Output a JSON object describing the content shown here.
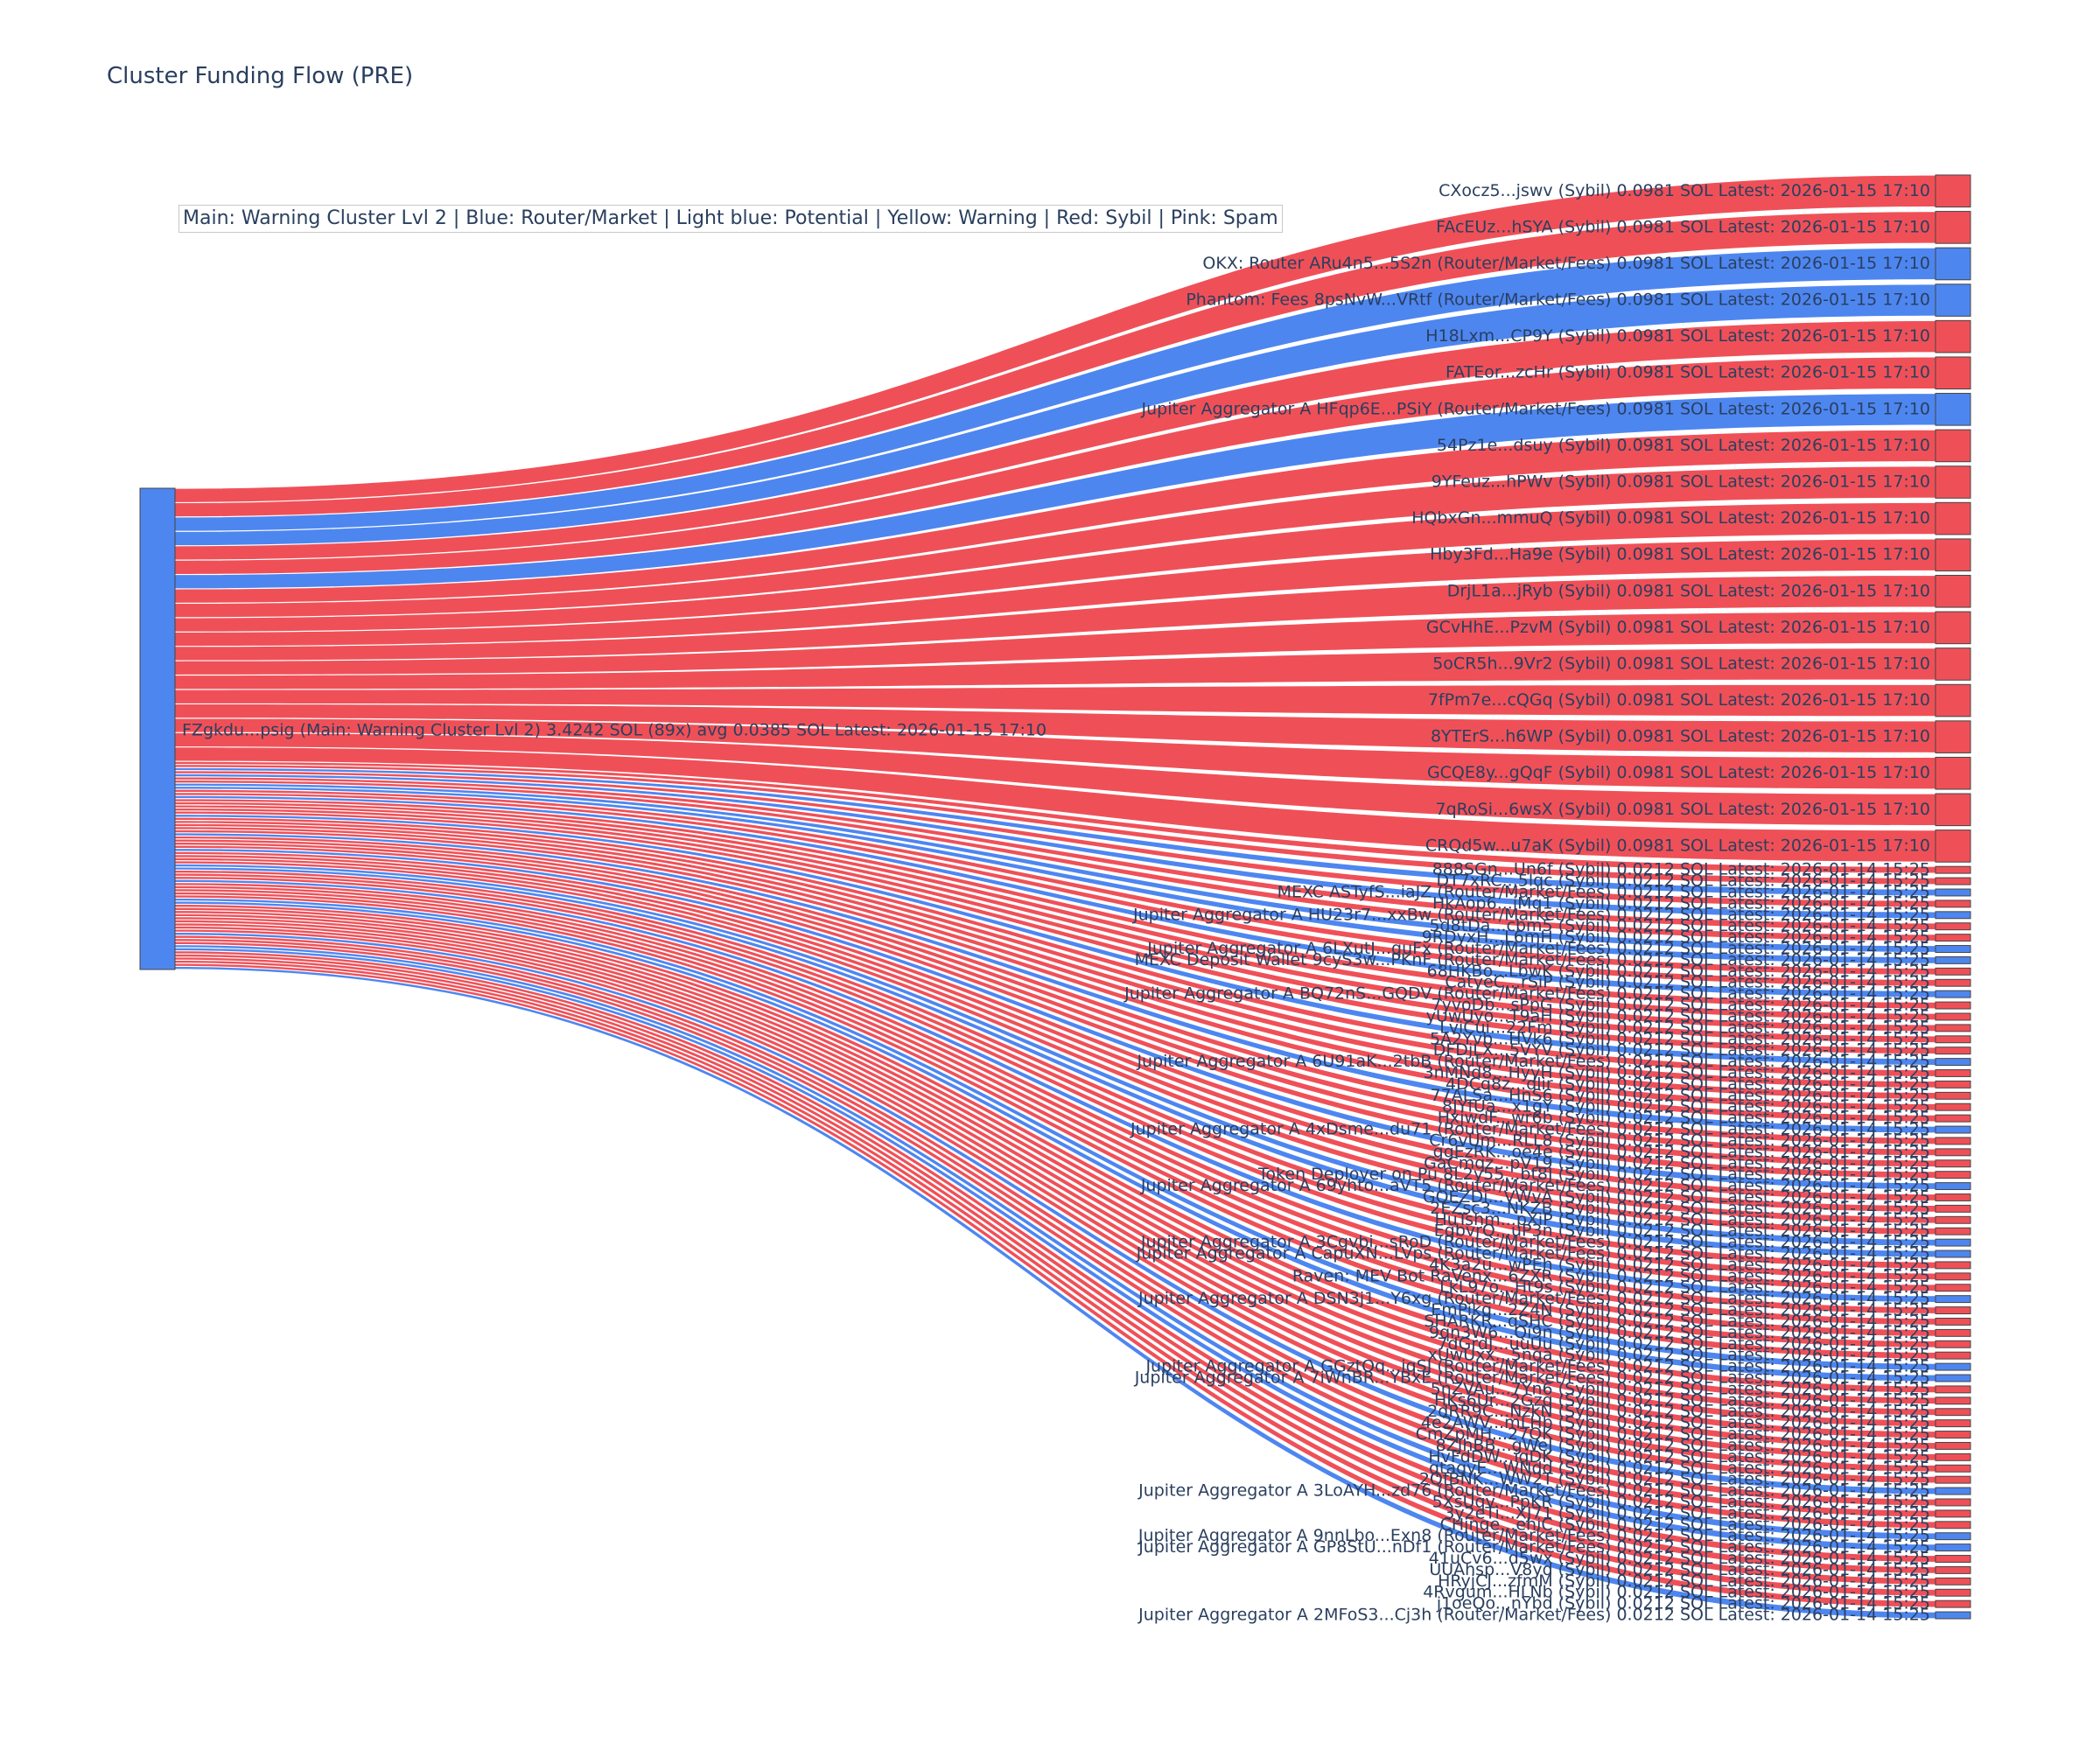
{
  "title": "Cluster Funding Flow (PRE)",
  "legend": "Main: Warning Cluster Lvl 2  |  Blue: Router/Market | Light blue: Potential | Yellow: Warning | Red: Sybil | Pink: Spam",
  "colors": {
    "sybil": "#EF5058",
    "router": "#4E86F0",
    "main": "#4E86F0",
    "label": "#2a3f5f"
  },
  "chart_data": {
    "type": "sankey",
    "source": {
      "label": "FZgkdu...psig (Main: Warning Cluster Lvl 2) 3.4242 SOL (89x) avg 0.0385 SOL Latest: 2026-01-15 17:10",
      "category": "main"
    },
    "targets": [
      {
        "label": "CXocz5...jswv (Sybil) 0.0981 SOL Latest: 2026-01-15 17:10",
        "value": 0.0981,
        "category": "sybil"
      },
      {
        "label": "FAcEUz...hSYA (Sybil) 0.0981 SOL Latest: 2026-01-15 17:10",
        "value": 0.0981,
        "category": "sybil"
      },
      {
        "label": "OKX: Router ARu4n5...5S2n (Router/Market/Fees) 0.0981 SOL Latest: 2026-01-15 17:10",
        "value": 0.0981,
        "category": "router"
      },
      {
        "label": "Phantom: Fees 8psNvW...VRtf (Router/Market/Fees) 0.0981 SOL Latest: 2026-01-15 17:10",
        "value": 0.0981,
        "category": "router"
      },
      {
        "label": "H18Lxm...CP9Y (Sybil) 0.0981 SOL Latest: 2026-01-15 17:10",
        "value": 0.0981,
        "category": "sybil"
      },
      {
        "label": "FATEor...zcHr (Sybil) 0.0981 SOL Latest: 2026-01-15 17:10",
        "value": 0.0981,
        "category": "sybil"
      },
      {
        "label": "Jupiter Aggregator A HFqp6E...PSiY (Router/Market/Fees) 0.0981 SOL Latest: 2026-01-15 17:10",
        "value": 0.0981,
        "category": "router"
      },
      {
        "label": "54Pz1e...dsuy (Sybil) 0.0981 SOL Latest: 2026-01-15 17:10",
        "value": 0.0981,
        "category": "sybil"
      },
      {
        "label": "9YFeuz...hPWv (Sybil) 0.0981 SOL Latest: 2026-01-15 17:10",
        "value": 0.0981,
        "category": "sybil"
      },
      {
        "label": "HQbxGn...mmuQ (Sybil) 0.0981 SOL Latest: 2026-01-15 17:10",
        "value": 0.0981,
        "category": "sybil"
      },
      {
        "label": "Hby3Fd...Ha9e (Sybil) 0.0981 SOL Latest: 2026-01-15 17:10",
        "value": 0.0981,
        "category": "sybil"
      },
      {
        "label": "DrjL1a...jRyb (Sybil) 0.0981 SOL Latest: 2026-01-15 17:10",
        "value": 0.0981,
        "category": "sybil"
      },
      {
        "label": "GCvHhE...PzvM (Sybil) 0.0981 SOL Latest: 2026-01-15 17:10",
        "value": 0.0981,
        "category": "sybil"
      },
      {
        "label": "5oCR5h...9Vr2 (Sybil) 0.0981 SOL Latest: 2026-01-15 17:10",
        "value": 0.0981,
        "category": "sybil"
      },
      {
        "label": "7fPm7e...cQGq (Sybil) 0.0981 SOL Latest: 2026-01-15 17:10",
        "value": 0.0981,
        "category": "sybil"
      },
      {
        "label": "8YTErS...h6WP (Sybil) 0.0981 SOL Latest: 2026-01-15 17:10",
        "value": 0.0981,
        "category": "sybil"
      },
      {
        "label": "GCQE8y...gQqF (Sybil) 0.0981 SOL Latest: 2026-01-15 17:10",
        "value": 0.0981,
        "category": "sybil"
      },
      {
        "label": "7qRoSi...6wsX (Sybil) 0.0981 SOL Latest: 2026-01-15 17:10",
        "value": 0.0981,
        "category": "sybil"
      },
      {
        "label": "CRQd5w...u7aK (Sybil) 0.0981 SOL Latest: 2026-01-15 17:10",
        "value": 0.0981,
        "category": "sybil"
      },
      {
        "label": "888SGn...Un6f (Sybil) 0.0212 SOL Latest: 2026-01-14 15:25",
        "value": 0.0212,
        "category": "sybil"
      },
      {
        "label": "DT7xRC...5lqc (Sybil) 0.0212 SOL Latest: 2026-01-14 15:25",
        "value": 0.0212,
        "category": "sybil"
      },
      {
        "label": "MEXC ASTyfS...iaJZ (Router/Market/Fees) 0.0212 SOL Latest: 2026-01-14 15:25",
        "value": 0.0212,
        "category": "router"
      },
      {
        "label": "HkAop6...iMq1 (Sybil) 0.0212 SOL Latest: 2026-01-14 15:25",
        "value": 0.0212,
        "category": "sybil"
      },
      {
        "label": "Jupiter Aggregator A HU23r7...xxBw (Router/Market/Fees) 0.0212 SOL Latest: 2026-01-14 15:25",
        "value": 0.0212,
        "category": "router"
      },
      {
        "label": "5d8tDa...cbm5 (Sybil) 0.0212 SOL Latest: 2026-01-14 15:25",
        "value": 0.0212,
        "category": "sybil"
      },
      {
        "label": "9RDyxH...L6mH (Sybil) 0.0212 SOL Latest: 2026-01-14 15:25",
        "value": 0.0212,
        "category": "sybil"
      },
      {
        "label": "Jupiter Aggregator A 6LXutJ...quFx (Router/Market/Fees) 0.0212 SOL Latest: 2026-01-14 15:25",
        "value": 0.0212,
        "category": "router"
      },
      {
        "label": "MEXC Deposit Wallet 9cyS3w...PKnF (Router/Market/Fees) 0.0212 SOL Latest: 2026-01-14 15:25",
        "value": 0.0212,
        "category": "router"
      },
      {
        "label": "68HKBo...LbwK (Sybil) 0.0212 SOL Latest: 2026-01-14 15:25",
        "value": 0.0212,
        "category": "sybil"
      },
      {
        "label": "CatyeC...rSiP (Sybil) 0.0212 SOL Latest: 2026-01-14 15:25",
        "value": 0.0212,
        "category": "sybil"
      },
      {
        "label": "Jupiter Aggregator A BQ72nS...GQDV (Router/Market/Fees) 0.0212 SOL Latest: 2026-01-14 15:25",
        "value": 0.0212,
        "category": "router"
      },
      {
        "label": "7yvoDb...sPpG (Sybil) 0.0212 SOL Latest: 2026-01-14 15:25",
        "value": 0.0212,
        "category": "sybil"
      },
      {
        "label": "yUwUyo...T9aH (Sybil) 0.0212 SOL Latest: 2026-01-14 15:25",
        "value": 0.0212,
        "category": "sybil"
      },
      {
        "label": "LviCui...22Fm (Sybil) 0.0212 SOL Latest: 2026-01-14 15:25",
        "value": 0.0212,
        "category": "sybil"
      },
      {
        "label": "5A2Yvb...HVk6 (Sybil) 0.0212 SOL Latest: 2026-01-14 15:25",
        "value": 0.0212,
        "category": "sybil"
      },
      {
        "label": "DFDjLX...5VYV (Sybil) 0.0212 SOL Latest: 2026-01-14 15:25",
        "value": 0.0212,
        "category": "sybil"
      },
      {
        "label": "Jupiter Aggregator A 6U91aK...2tbB (Router/Market/Fees) 0.0212 SOL Latest: 2026-01-14 15:25",
        "value": 0.0212,
        "category": "router"
      },
      {
        "label": "3nMNd8...HyyH (Sybil) 0.0212 SOL Latest: 2026-01-14 15:25",
        "value": 0.0212,
        "category": "sybil"
      },
      {
        "label": "4DCq8z...dlir (Sybil) 0.0212 SOL Latest: 2026-01-14 15:25",
        "value": 0.0212,
        "category": "sybil"
      },
      {
        "label": "77ALSa...HnS6 (Sybil) 0.0212 SOL Latest: 2026-01-14 15:25",
        "value": 0.0212,
        "category": "sybil"
      },
      {
        "label": "8JYfUa...x1gY (Sybil) 0.0212 SOL Latest: 2026-01-14 15:25",
        "value": 0.0212,
        "category": "sybil"
      },
      {
        "label": "HxjwdF...wr6b (Sybil) 0.0212 SOL Latest: 2026-01-14 15:25",
        "value": 0.0212,
        "category": "sybil"
      },
      {
        "label": "Jupiter Aggregator A 4xDsme...du71 (Router/Market/Fees) 0.0212 SOL Latest: 2026-01-14 15:25",
        "value": 0.0212,
        "category": "router"
      },
      {
        "label": "Cr6vUm...RLL8 (Sybil) 0.0212 SOL Latest: 2026-01-14 15:25",
        "value": 0.0212,
        "category": "sybil"
      },
      {
        "label": "ggEzRK...oe4e (Sybil) 0.0212 SOL Latest: 2026-01-14 15:25",
        "value": 0.0212,
        "category": "sybil"
      },
      {
        "label": "GaCmqz...pV19 (Sybil) 0.0212 SOL Latest: 2026-01-14 15:25",
        "value": 0.0212,
        "category": "sybil"
      },
      {
        "label": "Token Deployer on Pu 8L2y55...bt8J (Sybil) 0.0212 SOL Latest: 2026-01-14 15:25",
        "value": 0.0212,
        "category": "sybil"
      },
      {
        "label": "Jupiter Aggregator A 69yhto...aVT5 (Router/Market/Fees) 0.0212 SOL Latest: 2026-01-14 15:25",
        "value": 0.0212,
        "category": "router"
      },
      {
        "label": "GQEZDi...VWvA (Sybil) 0.0212 SOL Latest: 2026-01-14 15:25",
        "value": 0.0212,
        "category": "sybil"
      },
      {
        "label": "2EZsc3...NKZB (Sybil) 0.0212 SOL Latest: 2026-01-14 15:25",
        "value": 0.0212,
        "category": "sybil"
      },
      {
        "label": "HuTshm...pXiP (Sybil) 0.0212 SOL Latest: 2026-01-14 15:25",
        "value": 0.0212,
        "category": "sybil"
      },
      {
        "label": "EqbvrQ...uP3n (Sybil) 0.0212 SOL Latest: 2026-01-14 15:25",
        "value": 0.0212,
        "category": "sybil"
      },
      {
        "label": "Jupiter Aggregator A 3Cgvbi...sRoD (Router/Market/Fees) 0.0212 SOL Latest: 2026-01-14 15:25",
        "value": 0.0212,
        "category": "router"
      },
      {
        "label": "Jupiter Aggregator A CapuXN...LVps (Router/Market/Fees) 0.0212 SOL Latest: 2026-01-14 15:25",
        "value": 0.0212,
        "category": "router"
      },
      {
        "label": "4K3a2u...wPEh (Sybil) 0.0212 SOL Latest: 2026-01-14 15:25",
        "value": 0.0212,
        "category": "sybil"
      },
      {
        "label": "Raven: MEV Bot RaVenx...6ZXR (Sybil) 0.0212 SOL Latest: 2026-01-14 15:25",
        "value": 0.0212,
        "category": "sybil"
      },
      {
        "label": "LkL97o...Ht9s (Sybil) 0.0212 SOL Latest: 2026-01-14 15:25",
        "value": 0.0212,
        "category": "sybil"
      },
      {
        "label": "Jupiter Aggregator A DSN3j1...Y6xg (Router/Market/Fees) 0.0212 SOL Latest: 2026-01-14 15:25",
        "value": 0.0212,
        "category": "router"
      },
      {
        "label": "EmPikq...2Z4N (Sybil) 0.0212 SOL Latest: 2026-01-14 15:25",
        "value": 0.0212,
        "category": "sybil"
      },
      {
        "label": "SHARKR...qSHC (Sybil) 0.0212 SOL Latest: 2026-01-14 15:25",
        "value": 0.0212,
        "category": "sybil"
      },
      {
        "label": "9qn3W6...Qi9n (Sybil) 0.0212 SOL Latest: 2026-01-14 15:25",
        "value": 0.0212,
        "category": "sybil"
      },
      {
        "label": "7dGrdJ...uuUu (Sybil) 0.0212 SOL Latest: 2026-01-14 15:25",
        "value": 0.0212,
        "category": "sybil"
      },
      {
        "label": "xUwUxx...5nqa (Sybil) 0.0212 SOL Latest: 2026-01-14 15:25",
        "value": 0.0212,
        "category": "sybil"
      },
      {
        "label": "Jupiter Aggregator A GGztOq...iqSJ (Router/Market/Fees) 0.0212 SOL Latest: 2026-01-14 15:25",
        "value": 0.0212,
        "category": "router"
      },
      {
        "label": "Jupiter Aggregator A 7iWnBR...YBxE (Router/Market/Fees) 0.0212 SOL Latest: 2026-01-14 15:25",
        "value": 0.0212,
        "category": "router"
      },
      {
        "label": "5nZVAu...7Yn6 (Sybil) 0.0212 SOL Latest: 2026-01-14 15:25",
        "value": 0.0212,
        "category": "sybil"
      },
      {
        "label": "HKs6Ur...2Gzq (Sybil) 0.0212 SOL Latest: 2026-01-14 15:25",
        "value": 0.0212,
        "category": "sybil"
      },
      {
        "label": "2dRR9C...NzkN (Sybil) 0.0212 SOL Latest: 2026-01-14 15:25",
        "value": 0.0212,
        "category": "sybil"
      },
      {
        "label": "4e2AWV...mLHb (Sybil) 0.0212 SOL Latest: 2026-01-14 15:25",
        "value": 0.0212,
        "category": "sybil"
      },
      {
        "label": "CmZpMH...27QK (Sybil) 0.0212 SOL Latest: 2026-01-14 15:25",
        "value": 0.0212,
        "category": "sybil"
      },
      {
        "label": "8ZJhBB...gWeJ (Sybil) 0.0212 SOL Latest: 2026-01-14 15:25",
        "value": 0.0212,
        "category": "sybil"
      },
      {
        "label": "HvFdDW...iqDK (Sybil) 0.0212 SOL Latest: 2026-01-14 15:25",
        "value": 0.0212,
        "category": "sybil"
      },
      {
        "label": "qtagyE...WNdd (Sybil) 0.0212 SOL Latest: 2026-01-14 15:25",
        "value": 0.0212,
        "category": "sybil"
      },
      {
        "label": "2QfBNK...WW2T (Sybil) 0.0212 SOL Latest: 2026-01-14 15:25",
        "value": 0.0212,
        "category": "sybil"
      },
      {
        "label": "Jupiter Aggregator A 3LoAYH...zd76 (Router/Market/Fees) 0.0212 SOL Latest: 2026-01-14 15:25",
        "value": 0.0212,
        "category": "router"
      },
      {
        "label": "5XsUqv...PpKR (Sybil) 0.0212 SOL Latest: 2026-01-14 15:25",
        "value": 0.0212,
        "category": "sybil"
      },
      {
        "label": "3y2eTi...XJ71 (Sybil) 0.0212 SOL Latest: 2026-01-14 15:25",
        "value": 0.0212,
        "category": "sybil"
      },
      {
        "label": "CHjnge...ehiC (Sybil) 0.0212 SOL Latest: 2026-01-14 15:25",
        "value": 0.0212,
        "category": "sybil"
      },
      {
        "label": "Jupiter Aggregator A 9nnLbo...Exn8 (Router/Market/Fees) 0.0212 SOL Latest: 2026-01-14 15:25",
        "value": 0.0212,
        "category": "router"
      },
      {
        "label": "Jupiter Aggregator A GP8StU...nDf1 (Router/Market/Fees) 0.0212 SOL Latest: 2026-01-14 15:25",
        "value": 0.0212,
        "category": "router"
      },
      {
        "label": "41uCv6...d5wx (Sybil) 0.0212 SOL Latest: 2026-01-14 15:25",
        "value": 0.0212,
        "category": "sybil"
      },
      {
        "label": "UUAhsp...V8yd (Sybil) 0.0212 SOL Latest: 2026-01-14 15:25",
        "value": 0.0212,
        "category": "sybil"
      },
      {
        "label": "HRyjCJ...zfmM (Sybil) 0.0212 SOL Latest: 2026-01-14 15:25",
        "value": 0.0212,
        "category": "sybil"
      },
      {
        "label": "4Rvgum...HLNb (Sybil) 0.0212 SOL Latest: 2026-01-14 15:25",
        "value": 0.0212,
        "category": "sybil"
      },
      {
        "label": "j1oeQo...nYbd (Sybil) 0.0212 SOL Latest: 2026-01-14 15:25",
        "value": 0.0212,
        "category": "sybil"
      },
      {
        "label": "Jupiter Aggregator A 2MFoS3...Cj3h (Router/Market/Fees) 0.0212 SOL Latest: 2026-01-14 15:25",
        "value": 0.0212,
        "category": "router"
      }
    ]
  }
}
